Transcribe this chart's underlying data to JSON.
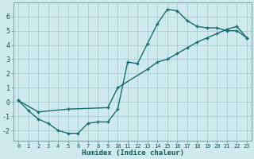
{
  "xlabel": "Humidex (Indice chaleur)",
  "bg_color": "#ceeaec",
  "grid_color": "#aacdd0",
  "line_color": "#1a6b6b",
  "xlim": [
    -0.5,
    23.5
  ],
  "ylim": [
    -2.7,
    7.0
  ],
  "yticks": [
    -2,
    -1,
    0,
    1,
    2,
    3,
    4,
    5,
    6
  ],
  "xticks": [
    0,
    1,
    2,
    3,
    4,
    5,
    6,
    7,
    8,
    9,
    10,
    11,
    12,
    13,
    14,
    15,
    16,
    17,
    18,
    19,
    20,
    21,
    22,
    23
  ],
  "series1_x": [
    0,
    1,
    2,
    3,
    4,
    5,
    6,
    7,
    8,
    9,
    10,
    11,
    12,
    13,
    14,
    15,
    16,
    17,
    18,
    19,
    20,
    21,
    22,
    23
  ],
  "series1_y": [
    0.1,
    -0.6,
    -1.2,
    -1.5,
    -2.0,
    -2.2,
    -2.2,
    -1.5,
    -1.4,
    -1.4,
    -0.5,
    2.8,
    2.7,
    4.1,
    5.5,
    6.5,
    6.4,
    5.7,
    5.3,
    5.2,
    5.2,
    5.0,
    5.0,
    4.5
  ],
  "series2_x": [
    0,
    2,
    5,
    9,
    10,
    13,
    14,
    15,
    16,
    17,
    18,
    19,
    20,
    21,
    22,
    23
  ],
  "series2_y": [
    0.1,
    -0.7,
    -0.5,
    -0.4,
    1.0,
    2.3,
    2.8,
    3.0,
    3.4,
    3.8,
    4.2,
    4.5,
    4.8,
    5.1,
    5.3,
    4.5
  ],
  "markersize": 3.0,
  "linewidth": 1.0,
  "tick_color": "#1a5555",
  "xlabel_fontsize": 6.5,
  "tick_fontsize_x": 5.0,
  "tick_fontsize_y": 6.0
}
